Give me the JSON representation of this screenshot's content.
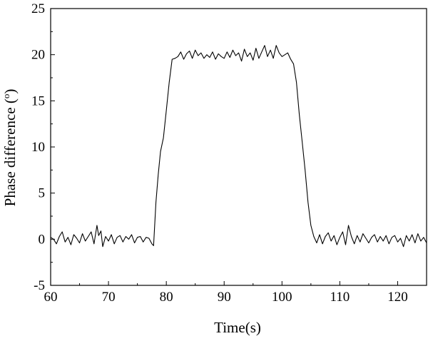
{
  "chart_data": {
    "type": "line",
    "title": "",
    "xlabel": "Time(s)",
    "ylabel": "Phase difference (",
    "ylabel_unit": "o",
    "ylabel_close": ")",
    "xlim": [
      60,
      125
    ],
    "ylim": [
      -5,
      25
    ],
    "xticks": [
      60,
      70,
      80,
      90,
      100,
      110,
      120
    ],
    "yticks": [
      -5,
      0,
      5,
      10,
      15,
      20,
      25
    ],
    "grid": false,
    "legend": "none",
    "line_color": "#000000",
    "series": [
      {
        "x": [
          60,
          60.5,
          61,
          61.5,
          62,
          62.5,
          63,
          63.5,
          64,
          64.5,
          65,
          65.5,
          66,
          66.5,
          67,
          67.5,
          68,
          68.3,
          68.7,
          69,
          69.5,
          70,
          70.5,
          71,
          71.5,
          72,
          72.5,
          73,
          73.5,
          74,
          74.5,
          75,
          75.5,
          76,
          76.5,
          77,
          77.5,
          77.8,
          78.2,
          78.6,
          79,
          79.5,
          80,
          80.5,
          81,
          81.5,
          82,
          82.5,
          83,
          83.5,
          84,
          84.5,
          85,
          85.5,
          86,
          86.5,
          87,
          87.5,
          88,
          88.5,
          89,
          89.5,
          90,
          90.5,
          91,
          91.5,
          92,
          92.5,
          93,
          93.5,
          94,
          94.5,
          95,
          95.5,
          96,
          96.5,
          97,
          97.5,
          98,
          98.5,
          99,
          99.5,
          100,
          100.5,
          101,
          101.5,
          102,
          102.5,
          103,
          103.5,
          104,
          104.5,
          105,
          105.5,
          106,
          106.5,
          107,
          107.5,
          108,
          108.5,
          109,
          109.5,
          110,
          110.5,
          111,
          111.5,
          112,
          112.5,
          113,
          113.5,
          114,
          114.5,
          115,
          115.5,
          116,
          116.5,
          117,
          117.5,
          118,
          118.5,
          119,
          119.5,
          120,
          120.5,
          121,
          121.5,
          122,
          122.5,
          123,
          123.5,
          124,
          124.5,
          125
        ],
        "y": [
          0.2,
          0.0,
          -0.5,
          0.3,
          0.8,
          -0.3,
          0.2,
          -0.6,
          0.5,
          0.1,
          -0.4,
          0.6,
          -0.2,
          0.3,
          0.8,
          -0.5,
          1.5,
          0.4,
          0.9,
          -0.8,
          0.3,
          -0.2,
          0.5,
          -0.5,
          0.2,
          0.4,
          -0.3,
          0.3,
          0.0,
          0.5,
          -0.4,
          0.2,
          0.3,
          -0.3,
          0.2,
          0.1,
          -0.5,
          -0.7,
          4.0,
          7.0,
          9.5,
          11.0,
          14.0,
          17.0,
          19.5,
          19.6,
          19.8,
          20.3,
          19.5,
          20.1,
          20.4,
          19.6,
          20.5,
          19.9,
          20.2,
          19.6,
          20.0,
          19.7,
          20.3,
          19.5,
          20.1,
          19.8,
          19.6,
          20.3,
          19.7,
          20.5,
          19.9,
          20.2,
          19.3,
          20.6,
          19.8,
          20.2,
          19.4,
          20.7,
          19.6,
          20.3,
          21.0,
          19.8,
          20.5,
          19.6,
          21.0,
          20.2,
          19.8,
          20.0,
          20.2,
          19.5,
          19.0,
          17.0,
          13.5,
          10.5,
          7.5,
          4.0,
          1.5,
          0.3,
          -0.4,
          0.5,
          -0.5,
          0.3,
          0.7,
          -0.2,
          0.4,
          -0.6,
          0.2,
          0.8,
          -0.6,
          1.5,
          0.3,
          -0.5,
          0.4,
          -0.3,
          0.6,
          0.1,
          -0.4,
          0.2,
          0.5,
          -0.3,
          0.3,
          -0.2,
          0.4,
          -0.5,
          0.2,
          0.4,
          -0.3,
          0.1,
          -0.8,
          0.4,
          -0.2,
          0.5,
          -0.4,
          0.6,
          -0.2,
          0.2,
          -0.4
        ]
      }
    ]
  }
}
